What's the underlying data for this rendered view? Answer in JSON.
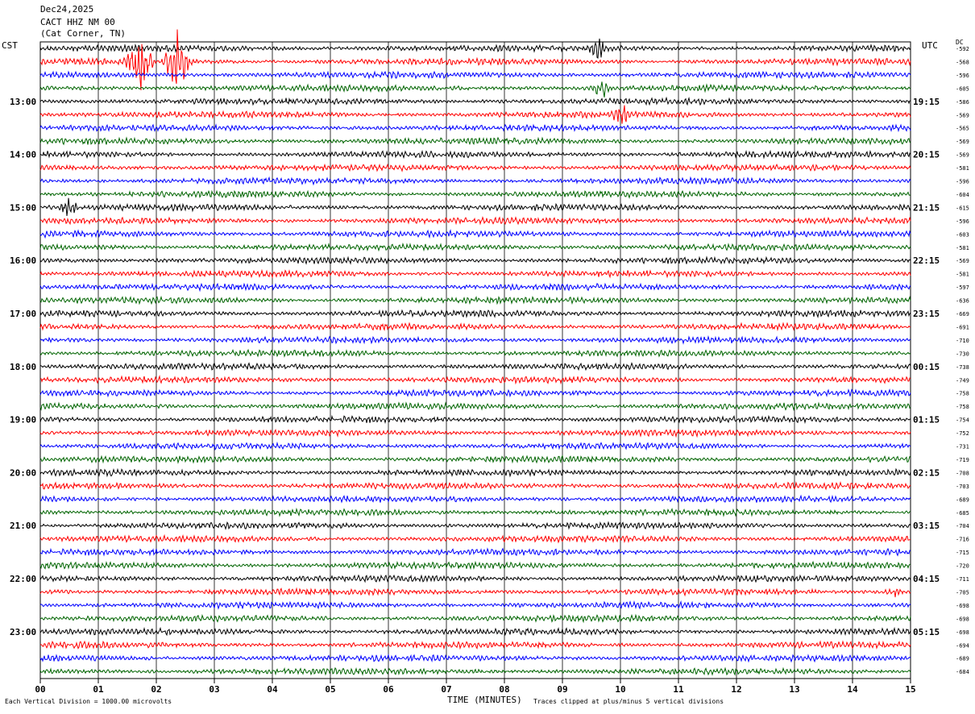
{
  "header": {
    "date": "Dec24,2025",
    "station": "CACT HHZ NM 00",
    "location": "(Cat Corner, TN)"
  },
  "left_zone": "CST",
  "right_zone": "UTC",
  "dc_label": "DC",
  "footer": {
    "scale_note": "Each Vertical Division = 1000.00 microvolts",
    "clip_note": "Traces clipped at plus/minus 5 vertical divisions"
  },
  "chart_data": {
    "type": "line",
    "title": "",
    "xlabel": "TIME (MINUTES)",
    "ylabel": "",
    "xlim": [
      0,
      15
    ],
    "x_ticks": [
      "00",
      "01",
      "02",
      "03",
      "04",
      "05",
      "06",
      "07",
      "08",
      "09",
      "10",
      "11",
      "12",
      "13",
      "14",
      "15"
    ],
    "grid": true,
    "colors": [
      "#000000",
      "#ff0000",
      "#0000ff",
      "#006400"
    ],
    "left_hour_labels": [
      "13:00",
      "14:00",
      "15:00",
      "16:00",
      "17:00",
      "18:00",
      "19:00",
      "20:00",
      "21:00",
      "22:00",
      "23:00"
    ],
    "right_hour_labels": [
      "19:15",
      "20:15",
      "21:15",
      "22:15",
      "23:15",
      "00:15",
      "01:15",
      "02:15",
      "03:15",
      "04:15",
      "05:15"
    ],
    "dc_offsets": [
      -592,
      -568,
      -596,
      -605,
      -586,
      -569,
      -565,
      -569,
      -569,
      -581,
      -596,
      -604,
      -615,
      -596,
      -603,
      -581,
      -569,
      -581,
      -597,
      -636,
      -669,
      -691,
      -710,
      -730,
      -738,
      -749,
      -758,
      -758,
      -754,
      -752,
      -731,
      -719,
      -708,
      -703,
      -689,
      -685,
      -704,
      -716,
      -715,
      -720,
      -711,
      -705,
      -698,
      -698,
      -698,
      -694,
      -689,
      -684
    ],
    "events": [
      {
        "trace": 0,
        "minute": 9.6,
        "strength": "moderate"
      },
      {
        "trace": 1,
        "minute": 1.7,
        "strength": "large"
      },
      {
        "trace": 1,
        "minute": 2.35,
        "strength": "large"
      },
      {
        "trace": 3,
        "minute": 9.65,
        "strength": "moderate"
      },
      {
        "trace": 5,
        "minute": 10.0,
        "strength": "moderate"
      },
      {
        "trace": 12,
        "minute": 0.5,
        "strength": "moderate"
      },
      {
        "trace": 41,
        "minute": 14.7,
        "strength": "small"
      }
    ]
  }
}
